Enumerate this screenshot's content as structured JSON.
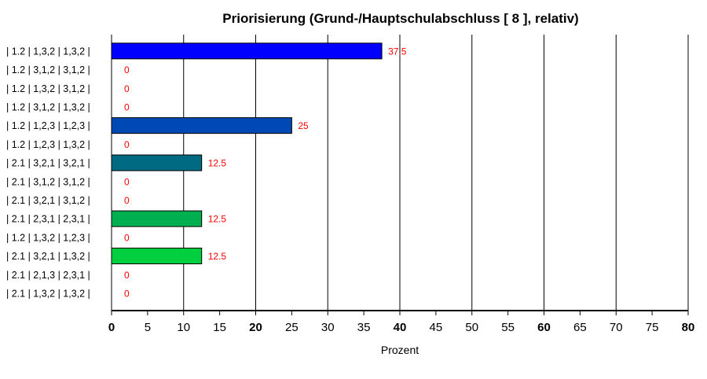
{
  "chart_data": {
    "type": "bar",
    "orientation": "horizontal",
    "title": "Priorisierung (Grund-/Hauptschulabschluss [ 8 ], relativ)",
    "xlabel": "Prozent",
    "ylabel": "",
    "xlim": [
      0,
      80
    ],
    "x_ticks": [
      0,
      5,
      10,
      15,
      20,
      25,
      30,
      35,
      40,
      45,
      50,
      55,
      60,
      65,
      70,
      75,
      80
    ],
    "x_ticks_bold": [
      0,
      20,
      40,
      60,
      80
    ],
    "grid": "vertical lines every 10",
    "categories": [
      "| 1.2 | 1,3,2 | 1,3,2 |",
      "| 1.2 | 3,1,2 | 3,1,2 |",
      "| 1.2 | 1,3,2 | 3,1,2 |",
      "| 1.2 | 3,1,2 | 1,3,2 |",
      "| 1.2 | 1,2,3 | 1,2,3 |",
      "| 1.2 | 1,2,3 | 1,3,2 |",
      "| 2.1 | 3,2,1 | 3,2,1 |",
      "| 2.1 | 3,1,2 | 3,1,2 |",
      "| 2.1 | 3,2,1 | 3,1,2 |",
      "| 2.1 | 2,3,1 | 2,3,1 |",
      "| 1.2 | 1,3,2 | 1,2,3 |",
      "| 2.1 | 3,2,1 | 1,3,2 |",
      "| 2.1 | 2,1,3 | 2,3,1 |",
      "| 2.1 | 1,3,2 | 1,3,2 |"
    ],
    "values": [
      37.5,
      0,
      0,
      0,
      25,
      0,
      12.5,
      0,
      0,
      12.5,
      0,
      12.5,
      0,
      0
    ],
    "value_labels": [
      "37.5",
      "0",
      "0",
      "0",
      "25",
      "0",
      "12.5",
      "0",
      "0",
      "12.5",
      "0",
      "12.5",
      "0",
      "0"
    ],
    "bar_colors": [
      "#0000ff",
      "#0000ff",
      "#0000ff",
      "#0000ff",
      "#0048b4",
      "#0048b4",
      "#006a82",
      "#006a82",
      "#006a82",
      "#00b050",
      "#00b050",
      "#00d040",
      "#00d040",
      "#00d040"
    ],
    "value_label_color": "#ff0000"
  }
}
